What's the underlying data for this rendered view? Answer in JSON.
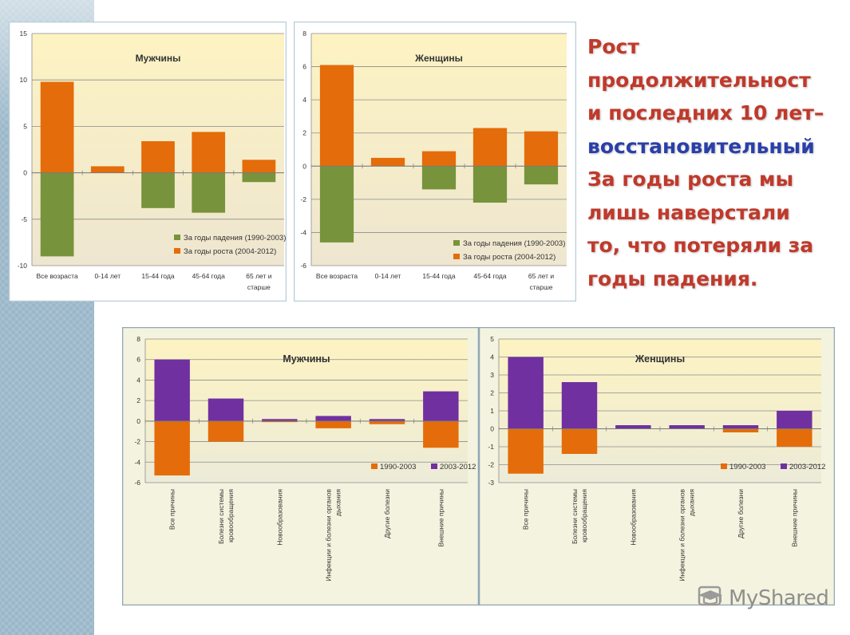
{
  "slide_text": [
    {
      "text": "Рост",
      "color": "#c0392b"
    },
    {
      "text": "продолжительност",
      "color": "#c0392b"
    },
    {
      "text": "и последних 10 лет–",
      "color": "#c0392b"
    },
    {
      "text": "восстановительный",
      "color": "#2a3fa8"
    },
    {
      "text": "За годы  роста мы",
      "color": "#c0392b"
    },
    {
      "text": "лишь наверстали",
      "color": "#c0392b"
    },
    {
      "text": "то, что потеряли за",
      "color": "#c0392b"
    },
    {
      "text": "годы падения.",
      "color": "#c0392b"
    }
  ],
  "watermark": {
    "text": "MyShared",
    "icon": "graduation-cap-icon"
  },
  "chart_data": [
    {
      "type": "bar",
      "stacked": true,
      "title": "Мужчины",
      "categories": [
        [
          "Все возраста"
        ],
        [
          "0-14 лет"
        ],
        [
          "15-44 года"
        ],
        [
          "45-64 года"
        ],
        [
          "65 лет и",
          "старше"
        ]
      ],
      "series": [
        {
          "name": "За годы падения (1990-2003)",
          "color": "#77933c",
          "values": [
            -9.0,
            0.0,
            -3.8,
            -4.3,
            -1.0
          ]
        },
        {
          "name": "За годы роста (2004-2012)",
          "color": "#e46c0a",
          "values": [
            9.8,
            0.7,
            3.4,
            4.4,
            1.4
          ]
        }
      ],
      "ylim": [
        -10,
        15
      ],
      "yticks": [
        -10,
        -5,
        0,
        5,
        10,
        15
      ],
      "grid": true,
      "legend": "bottom-right"
    },
    {
      "type": "bar",
      "stacked": true,
      "title": "Женщины",
      "categories": [
        [
          "Все возраста"
        ],
        [
          "0-14 лет"
        ],
        [
          "15-44 года"
        ],
        [
          "45-64 года"
        ],
        [
          "65 лет и",
          "старше"
        ]
      ],
      "series": [
        {
          "name": "За годы падения (1990-2003)",
          "color": "#77933c",
          "values": [
            -4.6,
            0.0,
            -1.4,
            -2.2,
            -1.1
          ]
        },
        {
          "name": "За годы роста (2004-2012)",
          "color": "#e46c0a",
          "values": [
            6.1,
            0.5,
            0.9,
            2.3,
            2.1
          ]
        }
      ],
      "ylim": [
        -6,
        8
      ],
      "yticks": [
        -6,
        -4,
        -2,
        0,
        2,
        4,
        6,
        8
      ],
      "grid": true,
      "legend": "bottom-right"
    },
    {
      "type": "bar",
      "stacked": true,
      "title": "Мужчины",
      "categories": [
        [
          "Все причины"
        ],
        [
          "Болезни системы",
          "кровообращения"
        ],
        [
          "Новообразования"
        ],
        [
          "Инфекции и болезни органов",
          "дыхания"
        ],
        [
          "Другие болезни"
        ],
        [
          "Внешние причины"
        ]
      ],
      "series": [
        {
          "name": "1990-2003",
          "color": "#e46c0a",
          "values": [
            -5.3,
            -2.0,
            -0.1,
            -0.7,
            -0.3,
            -2.6
          ]
        },
        {
          "name": "2003-2012",
          "color": "#7030a0",
          "values": [
            6.0,
            2.2,
            0.2,
            0.5,
            0.2,
            2.9
          ]
        }
      ],
      "ylim": [
        -6,
        8
      ],
      "yticks": [
        -6,
        -4,
        -2,
        0,
        2,
        4,
        6,
        8
      ],
      "grid": true,
      "legend": "bottom-right"
    },
    {
      "type": "bar",
      "stacked": true,
      "title": "Женщины",
      "categories": [
        [
          "Все причины"
        ],
        [
          "Болезни системы",
          "кровообращения"
        ],
        [
          "Новообразования"
        ],
        [
          "Инфекции и болезни органов",
          "дыхания"
        ],
        [
          "Другие болезни"
        ],
        [
          "Внешние причины"
        ]
      ],
      "series": [
        {
          "name": "1990-2003",
          "color": "#e46c0a",
          "values": [
            -2.5,
            -1.4,
            0.0,
            0.0,
            -0.2,
            -1.0
          ]
        },
        {
          "name": "2003-2012",
          "color": "#7030a0",
          "values": [
            4.0,
            2.6,
            0.2,
            0.2,
            0.2,
            1.0
          ]
        }
      ],
      "ylim": [
        -3,
        5
      ],
      "yticks": [
        -3,
        -2,
        -1,
        0,
        1,
        2,
        3,
        4,
        5
      ],
      "grid": true,
      "legend": "bottom-right"
    }
  ]
}
